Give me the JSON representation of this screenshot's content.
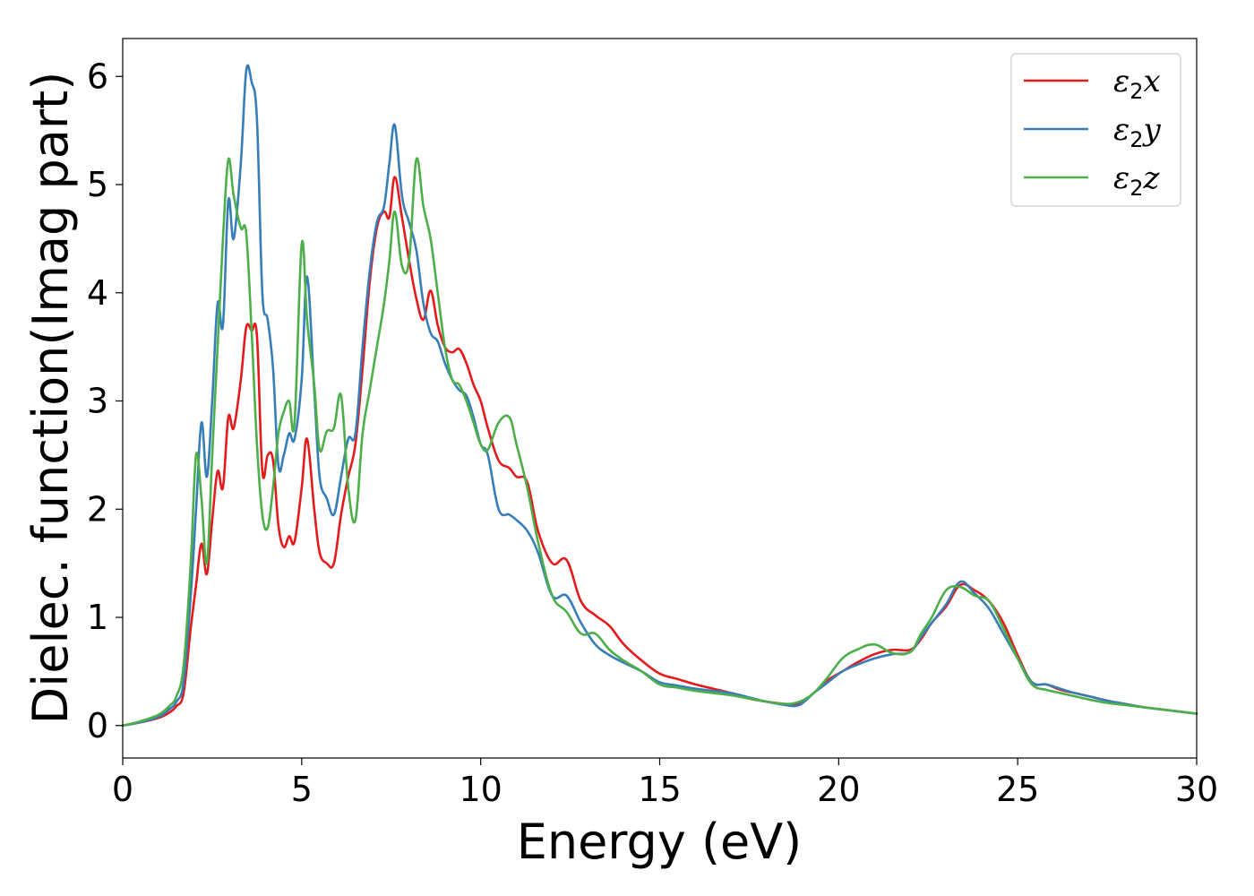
{
  "chart_data": {
    "type": "line",
    "title": "",
    "xlabel": "Energy (eV)",
    "ylabel": "Dielec. function(Imag part)",
    "xlim": [
      0,
      30
    ],
    "ylim": [
      -0.3,
      6.35
    ],
    "xticks": [
      0,
      5,
      10,
      15,
      20,
      25,
      30
    ],
    "yticks": [
      0,
      1,
      2,
      3,
      4,
      5,
      6
    ],
    "grid": false,
    "legend_position": "top-right",
    "series": [
      {
        "name": "ε₂x",
        "legend": {
          "symbol": "ε",
          "sub": "2",
          "var": "x"
        },
        "color": "#e41a1c",
        "x": [
          0,
          0.5,
          1.0,
          1.3,
          1.5,
          1.7,
          1.9,
          2.05,
          2.2,
          2.35,
          2.5,
          2.65,
          2.8,
          2.95,
          3.1,
          3.3,
          3.45,
          3.6,
          3.75,
          3.9,
          4.05,
          4.2,
          4.35,
          4.5,
          4.65,
          4.8,
          5.0,
          5.15,
          5.35,
          5.5,
          5.7,
          5.9,
          6.1,
          6.3,
          6.5,
          6.7,
          6.9,
          7.1,
          7.3,
          7.45,
          7.6,
          7.8,
          8.0,
          8.2,
          8.4,
          8.6,
          8.8,
          9.0,
          9.2,
          9.4,
          9.6,
          9.8,
          10.0,
          10.2,
          10.5,
          10.8,
          11.0,
          11.3,
          11.6,
          12.0,
          12.4,
          12.8,
          13.2,
          13.6,
          14.0,
          14.5,
          15.0,
          15.5,
          16.0,
          16.5,
          17.0,
          17.5,
          18.0,
          18.5,
          18.9,
          19.3,
          19.7,
          20.1,
          20.5,
          21.0,
          21.5,
          22.0,
          22.3,
          22.6,
          23.0,
          23.4,
          23.8,
          24.2,
          24.6,
          25.0,
          25.4,
          25.8,
          26.2,
          26.6,
          27.0,
          27.5,
          28.0,
          28.5,
          29.0,
          29.5,
          30.0
        ],
        "y": [
          0.0,
          0.03,
          0.07,
          0.12,
          0.18,
          0.3,
          0.9,
          1.3,
          1.68,
          1.4,
          1.9,
          2.35,
          2.2,
          2.85,
          2.75,
          3.2,
          3.68,
          3.65,
          3.6,
          2.35,
          2.5,
          2.45,
          1.85,
          1.65,
          1.75,
          1.7,
          2.2,
          2.65,
          2.0,
          1.6,
          1.5,
          1.5,
          1.95,
          2.3,
          2.6,
          3.3,
          4.1,
          4.6,
          4.75,
          4.7,
          5.07,
          4.7,
          4.3,
          3.95,
          3.75,
          4.02,
          3.7,
          3.5,
          3.45,
          3.48,
          3.35,
          3.15,
          3.0,
          2.75,
          2.45,
          2.38,
          2.3,
          2.25,
          1.8,
          1.5,
          1.53,
          1.15,
          1.02,
          0.92,
          0.75,
          0.6,
          0.48,
          0.43,
          0.38,
          0.34,
          0.3,
          0.25,
          0.22,
          0.2,
          0.2,
          0.3,
          0.42,
          0.5,
          0.58,
          0.66,
          0.7,
          0.7,
          0.8,
          0.95,
          1.1,
          1.3,
          1.25,
          1.15,
          0.95,
          0.65,
          0.4,
          0.38,
          0.33,
          0.3,
          0.27,
          0.23,
          0.2,
          0.17,
          0.15,
          0.13,
          0.11
        ]
      },
      {
        "name": "ε₂y",
        "legend": {
          "symbol": "ε",
          "sub": "2",
          "var": "y"
        },
        "color": "#377eb8",
        "x": [
          0,
          0.5,
          1.0,
          1.3,
          1.5,
          1.7,
          1.9,
          2.05,
          2.2,
          2.35,
          2.5,
          2.65,
          2.8,
          2.95,
          3.1,
          3.3,
          3.45,
          3.6,
          3.75,
          3.9,
          4.05,
          4.2,
          4.35,
          4.5,
          4.65,
          4.8,
          5.0,
          5.15,
          5.35,
          5.5,
          5.7,
          5.9,
          6.1,
          6.3,
          6.5,
          6.7,
          6.9,
          7.1,
          7.3,
          7.45,
          7.6,
          7.8,
          8.0,
          8.2,
          8.4,
          8.6,
          8.8,
          9.0,
          9.2,
          9.4,
          9.6,
          9.8,
          10.0,
          10.2,
          10.5,
          10.8,
          11.0,
          11.3,
          11.6,
          12.0,
          12.4,
          12.8,
          13.2,
          13.6,
          14.0,
          14.5,
          15.0,
          15.5,
          16.0,
          16.5,
          17.0,
          17.5,
          18.0,
          18.5,
          18.9,
          19.3,
          19.7,
          20.1,
          20.5,
          21.0,
          21.5,
          22.0,
          22.3,
          22.6,
          23.0,
          23.4,
          23.8,
          24.2,
          24.6,
          25.0,
          25.4,
          25.8,
          26.2,
          26.6,
          27.0,
          27.5,
          28.0,
          28.5,
          29.0,
          29.5,
          30.0
        ],
        "y": [
          0.0,
          0.03,
          0.08,
          0.15,
          0.22,
          0.4,
          1.2,
          2.0,
          2.8,
          2.3,
          3.0,
          3.9,
          3.7,
          4.85,
          4.5,
          5.2,
          6.05,
          5.95,
          5.6,
          4.0,
          3.75,
          3.3,
          2.4,
          2.5,
          2.7,
          2.65,
          3.2,
          4.15,
          3.1,
          2.3,
          2.1,
          1.95,
          2.3,
          2.65,
          2.7,
          3.5,
          4.2,
          4.65,
          4.8,
          5.2,
          5.55,
          4.9,
          4.65,
          4.4,
          3.9,
          3.63,
          3.55,
          3.35,
          3.2,
          3.1,
          3.05,
          2.85,
          2.6,
          2.5,
          2.0,
          1.95,
          1.9,
          1.8,
          1.6,
          1.2,
          1.2,
          0.95,
          0.75,
          0.65,
          0.58,
          0.5,
          0.4,
          0.37,
          0.34,
          0.32,
          0.3,
          0.26,
          0.22,
          0.19,
          0.19,
          0.3,
          0.4,
          0.5,
          0.56,
          0.62,
          0.66,
          0.68,
          0.82,
          0.95,
          1.12,
          1.33,
          1.22,
          1.08,
          0.85,
          0.62,
          0.4,
          0.38,
          0.34,
          0.3,
          0.27,
          0.23,
          0.2,
          0.17,
          0.15,
          0.13,
          0.11
        ]
      },
      {
        "name": "ε₂z",
        "legend": {
          "symbol": "ε",
          "sub": "2",
          "var": "z"
        },
        "color": "#4daf4a",
        "x": [
          0,
          0.5,
          1.0,
          1.3,
          1.5,
          1.7,
          1.9,
          2.05,
          2.2,
          2.35,
          2.5,
          2.65,
          2.8,
          2.95,
          3.1,
          3.3,
          3.45,
          3.6,
          3.75,
          3.9,
          4.05,
          4.2,
          4.35,
          4.5,
          4.65,
          4.8,
          5.0,
          5.15,
          5.35,
          5.5,
          5.7,
          5.9,
          6.1,
          6.3,
          6.5,
          6.7,
          6.9,
          7.1,
          7.3,
          7.45,
          7.6,
          7.8,
          8.0,
          8.2,
          8.4,
          8.6,
          8.8,
          9.0,
          9.2,
          9.4,
          9.6,
          9.8,
          10.0,
          10.2,
          10.5,
          10.8,
          11.0,
          11.3,
          11.6,
          12.0,
          12.4,
          12.8,
          13.2,
          13.6,
          14.0,
          14.5,
          15.0,
          15.5,
          16.0,
          16.5,
          17.0,
          17.5,
          18.0,
          18.5,
          18.9,
          19.3,
          19.7,
          20.1,
          20.5,
          21.0,
          21.5,
          22.0,
          22.3,
          22.6,
          23.0,
          23.4,
          23.8,
          24.2,
          24.6,
          25.0,
          25.4,
          25.8,
          26.2,
          26.6,
          27.0,
          27.5,
          28.0,
          28.5,
          29.0,
          29.5,
          30.0
        ],
        "y": [
          0.0,
          0.04,
          0.1,
          0.18,
          0.27,
          0.55,
          1.5,
          2.5,
          2.1,
          1.5,
          2.5,
          3.5,
          4.5,
          5.23,
          4.9,
          4.6,
          4.55,
          3.65,
          2.6,
          1.95,
          1.83,
          2.2,
          2.7,
          2.9,
          3.0,
          2.8,
          4.45,
          3.75,
          3.15,
          2.55,
          2.72,
          2.75,
          3.05,
          2.2,
          1.9,
          2.7,
          3.1,
          3.5,
          3.9,
          4.3,
          4.75,
          4.25,
          4.3,
          5.23,
          4.8,
          4.5,
          4.0,
          3.5,
          3.2,
          3.15,
          3.0,
          2.8,
          2.6,
          2.55,
          2.8,
          2.85,
          2.6,
          2.2,
          1.7,
          1.2,
          1.05,
          0.85,
          0.85,
          0.7,
          0.6,
          0.5,
          0.38,
          0.35,
          0.32,
          0.3,
          0.28,
          0.25,
          0.22,
          0.2,
          0.22,
          0.3,
          0.45,
          0.62,
          0.7,
          0.75,
          0.67,
          0.68,
          0.85,
          1.0,
          1.25,
          1.28,
          1.2,
          1.15,
          0.9,
          0.62,
          0.38,
          0.33,
          0.3,
          0.27,
          0.24,
          0.21,
          0.19,
          0.17,
          0.15,
          0.13,
          0.11
        ]
      }
    ]
  }
}
